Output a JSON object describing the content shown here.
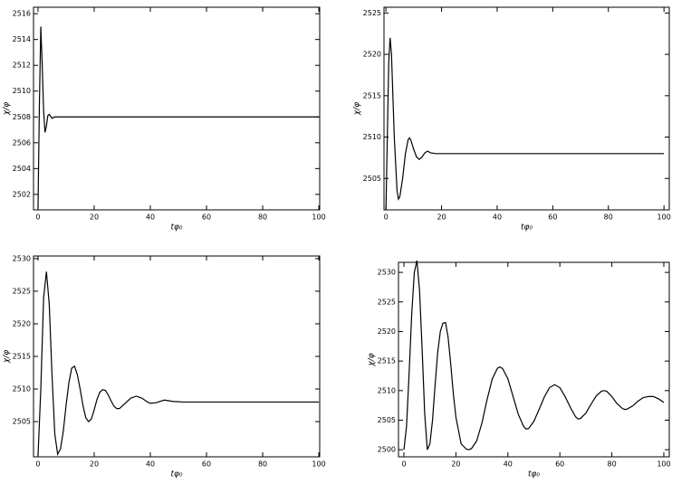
{
  "chart_data": [
    {
      "type": "line",
      "xlabel": "tφ₀",
      "ylabel": "χ/φ",
      "color": "#000000",
      "xlim": [
        -1.6,
        100.3
      ],
      "ylim": [
        2500.8,
        2516.5
      ],
      "xticks": [
        0,
        20,
        40,
        60,
        80,
        100
      ],
      "yticks": [
        2502,
        2504,
        2506,
        2508,
        2510,
        2512,
        2514,
        2516
      ],
      "x": [
        0,
        0.5,
        1,
        1.5,
        2,
        2.5,
        3,
        3.5,
        4,
        5,
        6,
        8,
        10,
        100
      ],
      "values": [
        2500.9,
        2509,
        2515,
        2512,
        2508.5,
        2506.8,
        2507.3,
        2508.1,
        2508.2,
        2507.9,
        2508,
        2508,
        2508,
        2508
      ]
    },
    {
      "type": "line",
      "xlabel": "tφ₀",
      "ylabel": "χ/φ",
      "color": "#000000",
      "xlim": [
        -0.7,
        101.9
      ],
      "ylim": [
        2501.2,
        2525.7
      ],
      "xticks": [
        0,
        20,
        40,
        60,
        80,
        100
      ],
      "yticks": [
        2505,
        2510,
        2515,
        2520,
        2525
      ],
      "x": [
        0,
        0.5,
        1,
        1.5,
        2,
        3,
        4,
        4.5,
        5,
        6,
        7,
        8,
        8.5,
        9,
        10,
        11,
        12,
        13,
        14,
        15,
        16,
        18,
        100
      ],
      "values": [
        2501.2,
        2510,
        2519,
        2522,
        2520,
        2510,
        2503.5,
        2502.5,
        2502.8,
        2505,
        2508,
        2509.7,
        2509.9,
        2509.6,
        2508.5,
        2507.6,
        2507.3,
        2507.6,
        2508.1,
        2508.3,
        2508.1,
        2508,
        2508
      ]
    },
    {
      "type": "line",
      "xlabel": "tφ₀",
      "ylabel": "χ/φ",
      "color": "#000000",
      "xlim": [
        -1.6,
        100.3
      ],
      "ylim": [
        2499.6,
        2530.4
      ],
      "xticks": [
        0,
        20,
        40,
        60,
        80,
        100
      ],
      "yticks": [
        2505,
        2510,
        2515,
        2520,
        2525,
        2530
      ],
      "x": [
        0,
        1,
        2,
        3,
        4,
        5,
        6,
        7,
        8,
        9,
        10,
        11,
        12,
        13,
        14,
        15,
        16,
        17,
        18,
        19,
        20,
        21,
        22,
        23,
        24,
        25,
        26,
        27,
        28,
        29,
        31,
        33,
        35,
        37,
        39,
        40,
        42,
        45,
        48,
        52,
        100
      ],
      "values": [
        2499.7,
        2510,
        2524,
        2528,
        2523,
        2512,
        2503,
        2500,
        2500.8,
        2503.5,
        2507.5,
        2511,
        2513.2,
        2513.5,
        2512.2,
        2510,
        2507.5,
        2505.6,
        2505,
        2505.4,
        2506.8,
        2508.4,
        2509.5,
        2509.9,
        2509.8,
        2509.1,
        2508.2,
        2507.4,
        2507,
        2507,
        2507.8,
        2508.6,
        2508.9,
        2508.6,
        2508,
        2507.8,
        2507.9,
        2508.3,
        2508.1,
        2508,
        2508
      ]
    },
    {
      "type": "line",
      "xlabel": "tφ₀",
      "ylabel": "χ/φ",
      "color": "#000000",
      "xlim": [
        -2.1,
        102.1
      ],
      "ylim": [
        2498.8,
        2531.7
      ],
      "xticks": [
        0,
        20,
        40,
        60,
        80,
        100
      ],
      "yticks": [
        2500,
        2505,
        2510,
        2515,
        2520,
        2525,
        2530
      ],
      "x": [
        0,
        1,
        2,
        3,
        4,
        5,
        6,
        7,
        8,
        9,
        10,
        11,
        12,
        13,
        14,
        15,
        16,
        17,
        18,
        19,
        20,
        22,
        24,
        25,
        26,
        28,
        30,
        32,
        34,
        36,
        37,
        38,
        40,
        42,
        44,
        46,
        47,
        48,
        50,
        52,
        54,
        56,
        58,
        60,
        62,
        64,
        66,
        67,
        68,
        70,
        72,
        74,
        76,
        77,
        78,
        80,
        82,
        84,
        85,
        86,
        88,
        90,
        92,
        94,
        96,
        98,
        100
      ],
      "values": [
        2500,
        2504,
        2513,
        2523,
        2530,
        2532,
        2527,
        2517,
        2506,
        2500,
        2501,
        2505,
        2511,
        2516.5,
        2520,
        2521.4,
        2521.5,
        2519,
        2514.5,
        2509.5,
        2505.5,
        2501,
        2500.1,
        2500,
        2500.2,
        2501.5,
        2504.5,
        2508.5,
        2512,
        2513.8,
        2514,
        2513.7,
        2512,
        2509,
        2506,
        2504,
        2503.5,
        2503.6,
        2504.8,
        2506.8,
        2508.9,
        2510.5,
        2511,
        2510.5,
        2509,
        2507.2,
        2505.6,
        2505.2,
        2505.3,
        2506.2,
        2507.7,
        2509.1,
        2509.9,
        2510,
        2509.9,
        2509,
        2507.8,
        2507,
        2506.8,
        2506.9,
        2507.4,
        2508.2,
        2508.8,
        2509,
        2509,
        2508.6,
        2508
      ]
    }
  ]
}
